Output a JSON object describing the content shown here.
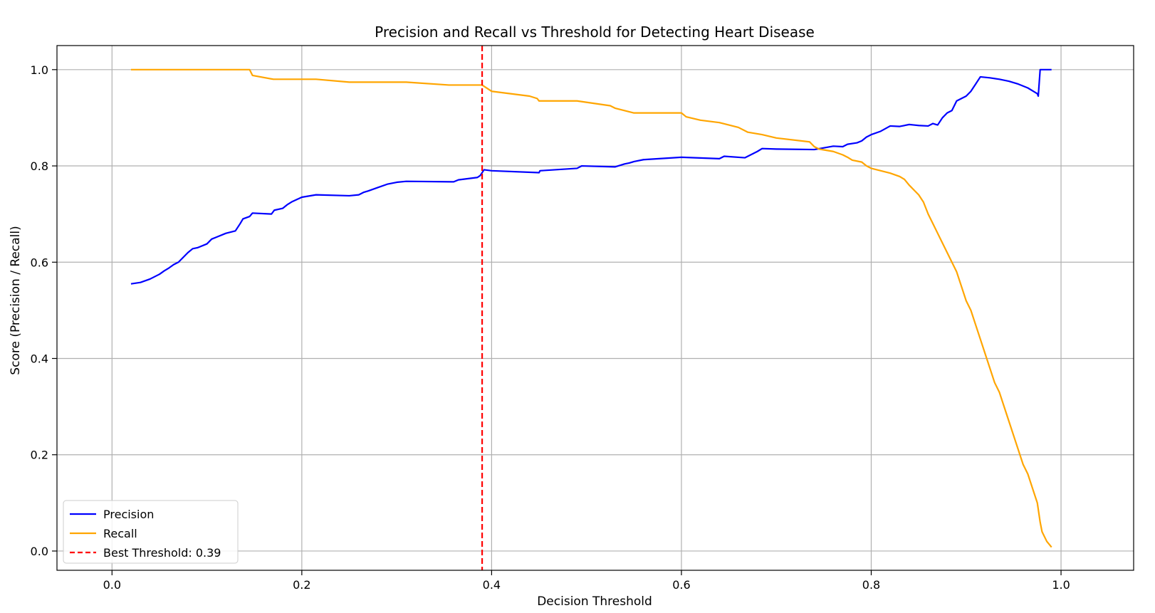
{
  "chart_data": {
    "type": "line",
    "title": "Precision and Recall vs Threshold for Detecting Heart Disease",
    "xlabel": "Decision Threshold",
    "ylabel": "Score (Precision / Recall)",
    "xlim": [
      -0.058,
      1.0765
    ],
    "ylim": [
      -0.04,
      1.05
    ],
    "xticks": [
      0.0,
      0.2,
      0.4,
      0.6,
      0.8,
      1.0
    ],
    "xtick_labels": [
      "0.0",
      "0.2",
      "0.4",
      "0.6",
      "0.8",
      "1.0"
    ],
    "yticks": [
      0.0,
      0.2,
      0.4,
      0.6,
      0.8,
      1.0
    ],
    "ytick_labels": [
      "0.0",
      "0.2",
      "0.4",
      "0.6",
      "0.8",
      "1.0"
    ],
    "grid": true,
    "legend_position": "lower-left",
    "best_threshold": 0.39,
    "series": [
      {
        "name": "Precision",
        "color": "#0000ff",
        "style": "solid",
        "x": [
          0.02,
          0.03,
          0.04,
          0.045,
          0.05,
          0.055,
          0.06,
          0.065,
          0.07,
          0.075,
          0.08,
          0.085,
          0.09,
          0.1,
          0.105,
          0.11,
          0.12,
          0.13,
          0.135,
          0.138,
          0.145,
          0.148,
          0.168,
          0.171,
          0.18,
          0.185,
          0.19,
          0.2,
          0.215,
          0.25,
          0.26,
          0.265,
          0.27,
          0.28,
          0.29,
          0.3,
          0.31,
          0.36,
          0.365,
          0.385,
          0.388,
          0.392,
          0.4,
          0.45,
          0.451,
          0.49,
          0.495,
          0.53,
          0.54,
          0.545,
          0.55,
          0.56,
          0.6,
          0.64,
          0.645,
          0.667,
          0.68,
          0.685,
          0.7,
          0.74,
          0.76,
          0.77,
          0.775,
          0.785,
          0.79,
          0.795,
          0.8,
          0.81,
          0.82,
          0.83,
          0.84,
          0.845,
          0.85,
          0.86,
          0.865,
          0.87,
          0.875,
          0.88,
          0.885,
          0.89,
          0.895,
          0.9,
          0.905,
          0.91,
          0.915,
          0.925,
          0.935,
          0.945,
          0.955,
          0.965,
          0.975,
          0.976,
          0.978,
          0.99
        ],
        "y": [
          0.555,
          0.558,
          0.565,
          0.57,
          0.575,
          0.582,
          0.588,
          0.595,
          0.6,
          0.61,
          0.62,
          0.628,
          0.63,
          0.638,
          0.648,
          0.652,
          0.66,
          0.665,
          0.68,
          0.69,
          0.695,
          0.702,
          0.7,
          0.708,
          0.712,
          0.72,
          0.726,
          0.735,
          0.74,
          0.738,
          0.74,
          0.745,
          0.748,
          0.755,
          0.762,
          0.766,
          0.768,
          0.767,
          0.771,
          0.776,
          0.78,
          0.792,
          0.79,
          0.786,
          0.79,
          0.795,
          0.8,
          0.798,
          0.804,
          0.806,
          0.809,
          0.813,
          0.818,
          0.815,
          0.82,
          0.817,
          0.83,
          0.836,
          0.835,
          0.834,
          0.841,
          0.84,
          0.845,
          0.848,
          0.852,
          0.86,
          0.865,
          0.872,
          0.883,
          0.882,
          0.886,
          0.885,
          0.884,
          0.883,
          0.888,
          0.885,
          0.9,
          0.91,
          0.915,
          0.935,
          0.94,
          0.945,
          0.955,
          0.97,
          0.985,
          0.983,
          0.98,
          0.976,
          0.97,
          0.962,
          0.95,
          0.945,
          1.0,
          1.0
        ]
      },
      {
        "name": "Recall",
        "color": "#ffa500",
        "style": "solid",
        "x": [
          0.02,
          0.145,
          0.148,
          0.17,
          0.215,
          0.25,
          0.31,
          0.355,
          0.39,
          0.4,
          0.44,
          0.448,
          0.45,
          0.49,
          0.525,
          0.53,
          0.54,
          0.55,
          0.6,
          0.605,
          0.62,
          0.64,
          0.66,
          0.67,
          0.685,
          0.7,
          0.735,
          0.74,
          0.745,
          0.76,
          0.77,
          0.775,
          0.78,
          0.79,
          0.795,
          0.8,
          0.81,
          0.82,
          0.83,
          0.835,
          0.84,
          0.845,
          0.85,
          0.855,
          0.86,
          0.865,
          0.87,
          0.875,
          0.88,
          0.885,
          0.89,
          0.895,
          0.9,
          0.905,
          0.91,
          0.915,
          0.92,
          0.925,
          0.93,
          0.935,
          0.94,
          0.945,
          0.95,
          0.955,
          0.96,
          0.965,
          0.97,
          0.975,
          0.978,
          0.98,
          0.985,
          0.99
        ],
        "y": [
          1.0,
          1.0,
          0.988,
          0.98,
          0.98,
          0.974,
          0.974,
          0.968,
          0.968,
          0.955,
          0.945,
          0.94,
          0.935,
          0.935,
          0.925,
          0.92,
          0.915,
          0.91,
          0.91,
          0.902,
          0.895,
          0.89,
          0.88,
          0.87,
          0.865,
          0.858,
          0.85,
          0.84,
          0.835,
          0.83,
          0.823,
          0.818,
          0.812,
          0.808,
          0.8,
          0.795,
          0.79,
          0.785,
          0.778,
          0.772,
          0.76,
          0.75,
          0.74,
          0.725,
          0.7,
          0.68,
          0.66,
          0.64,
          0.62,
          0.6,
          0.58,
          0.55,
          0.52,
          0.5,
          0.47,
          0.44,
          0.41,
          0.38,
          0.35,
          0.33,
          0.3,
          0.27,
          0.24,
          0.21,
          0.18,
          0.16,
          0.13,
          0.1,
          0.06,
          0.04,
          0.02,
          0.008
        ]
      }
    ],
    "legend": [
      {
        "label": "Precision",
        "color": "#0000ff",
        "style": "solid"
      },
      {
        "label": "Recall",
        "color": "#ffa500",
        "style": "solid"
      },
      {
        "label": "Best Threshold: 0.39",
        "color": "#ff0000",
        "style": "dashed"
      }
    ]
  }
}
